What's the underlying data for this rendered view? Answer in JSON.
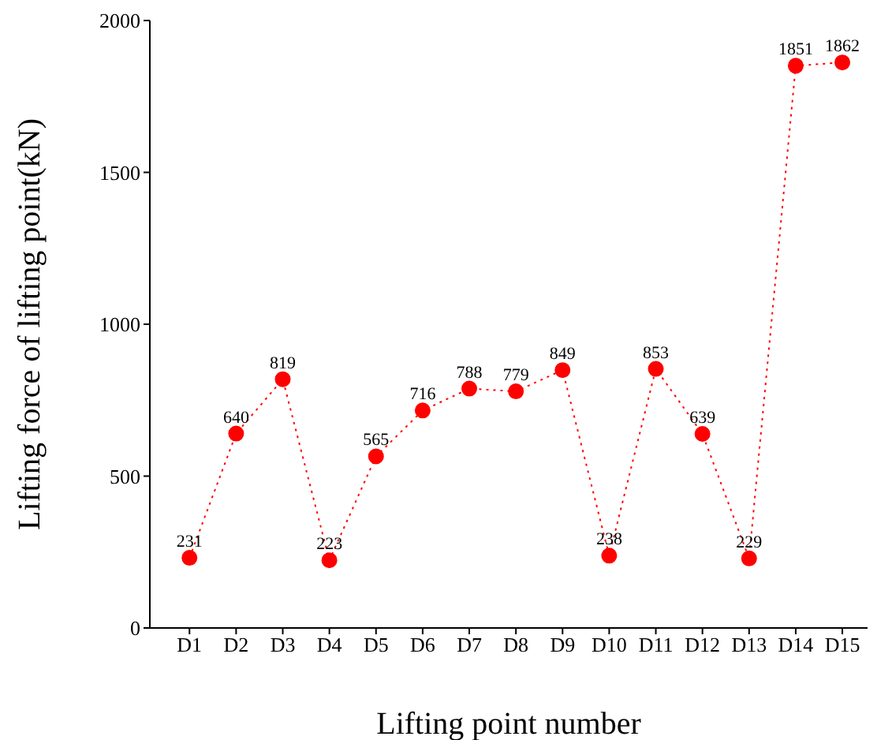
{
  "chart_data": {
    "type": "line",
    "xlabel": "Lifting point number",
    "ylabel": "Lifting force of lifting point(kN)",
    "categories": [
      "D1",
      "D2",
      "D3",
      "D4",
      "D5",
      "D6",
      "D7",
      "D8",
      "D9",
      "D10",
      "D11",
      "D12",
      "D13",
      "D14",
      "D15"
    ],
    "series": [
      {
        "color": "#ff0000",
        "values": [
          231,
          640,
          819,
          223,
          565,
          716,
          788,
          779,
          849,
          238,
          853,
          639,
          229,
          1851,
          1862
        ]
      }
    ],
    "ylim": [
      0,
      2000
    ],
    "yticks": [
      0,
      500,
      1000,
      1500,
      2000
    ],
    "marker": "circle",
    "line_style": "dotted",
    "data_labels": true,
    "grid": false,
    "legend": false
  }
}
